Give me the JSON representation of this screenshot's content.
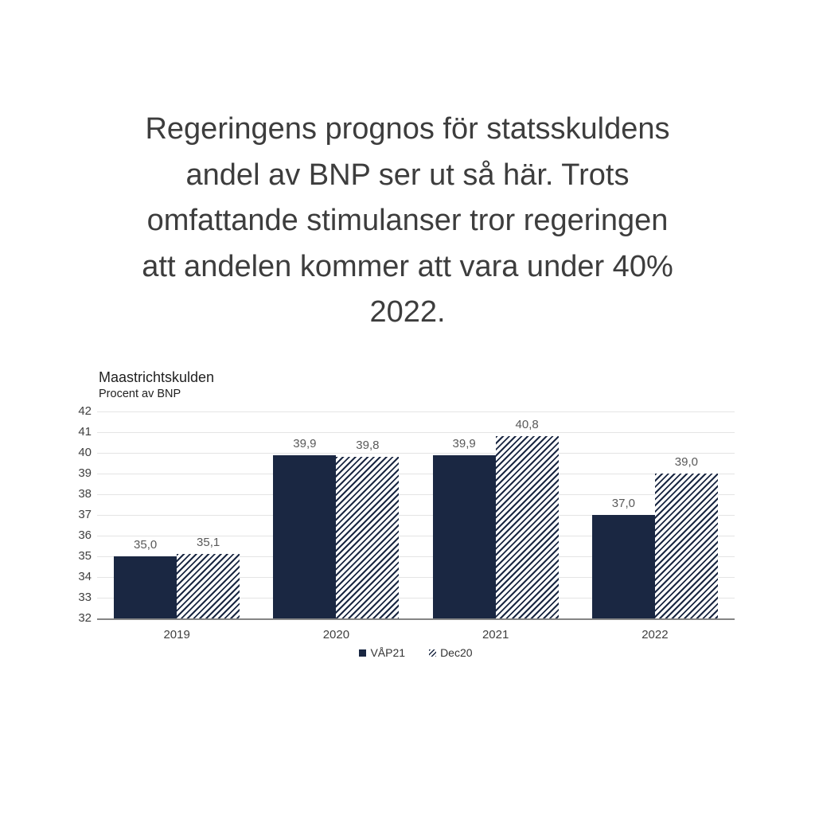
{
  "heading": {
    "lines": [
      "Regeringens prognos för statsskuldens",
      "andel av BNP ser ut så här. Trots",
      "omfattande stimulanser tror regeringen",
      "att andelen kommer att vara under 40%",
      "2022."
    ]
  },
  "chart": {
    "title": "Maastrichtskulden",
    "subtitle": "Procent av BNP"
  },
  "chart_data": {
    "type": "bar",
    "title": "Maastrichtskulden",
    "subtitle": "Procent av BNP",
    "xlabel": "",
    "ylabel": "Procent av BNP",
    "categories": [
      "2019",
      "2020",
      "2021",
      "2022"
    ],
    "series": [
      {
        "name": "VÅP21",
        "style": "solid",
        "values": [
          35.0,
          39.9,
          39.9,
          37.0
        ]
      },
      {
        "name": "Dec20",
        "style": "hatched",
        "values": [
          35.1,
          39.8,
          40.8,
          39.0
        ]
      }
    ],
    "ylim": [
      32,
      42
    ],
    "ytick_step": 1,
    "decimal_separator": ",",
    "grid": true,
    "legend_position": "bottom",
    "colors": {
      "bar_navy": "#1a2742",
      "gridline": "#e4e4e4",
      "baseline": "#858585",
      "value_label": "#595959",
      "axis_label": "#3f3f3f"
    }
  }
}
